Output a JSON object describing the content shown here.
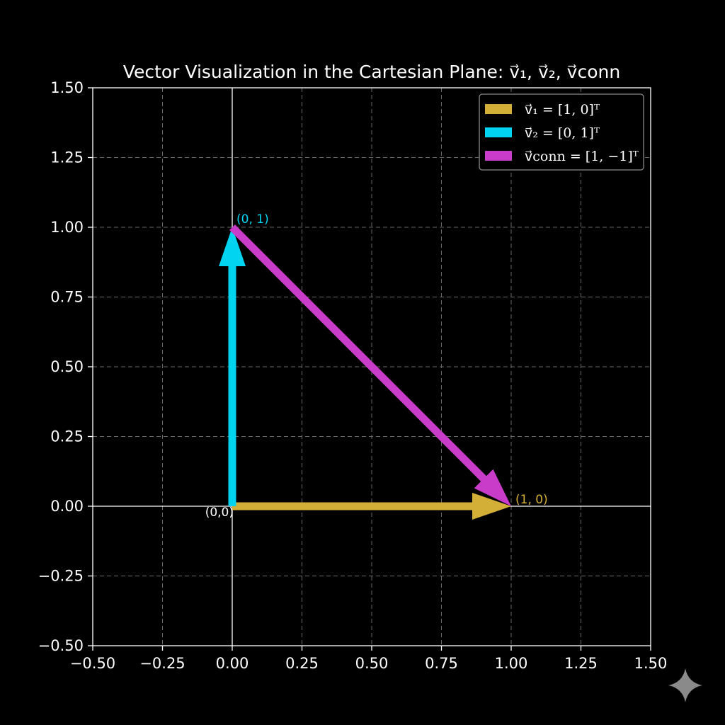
{
  "chart_data": {
    "type": "vector",
    "title": "Vector Visualization in the Cartesian Plane: v⃗₁, v⃗₂, v⃗conn",
    "xlabel": "",
    "ylabel": "",
    "xlim": [
      -0.5,
      1.5
    ],
    "ylim": [
      -0.5,
      1.5
    ],
    "x_ticks": [
      -0.5,
      -0.25,
      0.0,
      0.25,
      0.5,
      0.75,
      1.0,
      1.25,
      1.5
    ],
    "y_ticks": [
      -0.5,
      -0.25,
      0.0,
      0.25,
      0.5,
      0.75,
      1.0,
      1.25,
      1.5
    ],
    "x_tick_labels": [
      "−0.50",
      "−0.25",
      "0.00",
      "0.25",
      "0.50",
      "0.75",
      "1.00",
      "1.25",
      "1.50"
    ],
    "y_tick_labels": [
      "−0.50",
      "−0.25",
      "0.00",
      "0.25",
      "0.50",
      "0.75",
      "1.00",
      "1.25",
      "1.50"
    ],
    "grid": true,
    "legend_position": "top-right",
    "series": [
      {
        "name": "v⃗₁ = [1, 0]ᵀ",
        "start": [
          0,
          0
        ],
        "end": [
          1,
          0
        ],
        "color": "#D4AF37"
      },
      {
        "name": "v⃗₂ = [0, 1]ᵀ",
        "start": [
          0,
          0
        ],
        "end": [
          0,
          1
        ],
        "color": "#00D4F0"
      },
      {
        "name": "v⃗conn = [1, −1]ᵀ",
        "start": [
          0,
          1
        ],
        "end": [
          1,
          0
        ],
        "color": "#C93BC9"
      }
    ],
    "annotations": [
      {
        "text": "(0, 1)",
        "x": 0,
        "y": 1,
        "color": "#00D4F0"
      },
      {
        "text": "(1, 0)",
        "x": 1,
        "y": 0,
        "color": "#D4AF37"
      },
      {
        "text": "(0,0)",
        "x": 0,
        "y": 0,
        "color": "#ffffff"
      }
    ]
  }
}
